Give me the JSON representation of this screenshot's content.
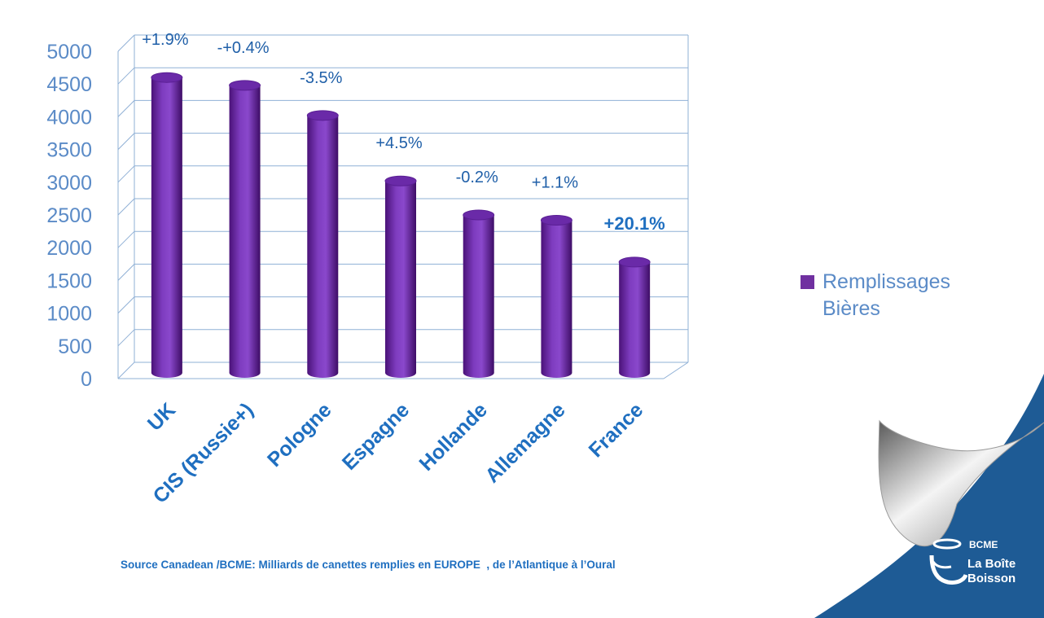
{
  "chart_data": {
    "type": "bar",
    "categories": [
      "UK",
      "CIS (Russie+)",
      "Pologne",
      "Espagne",
      "Hollande",
      "Allemagne",
      "France"
    ],
    "series": [
      {
        "name": "Remplissages Bières",
        "values": [
          4500,
          4380,
          3920,
          2920,
          2400,
          2320,
          1680
        ]
      }
    ],
    "data_labels": [
      "+1.9%",
      "-+0.4%",
      "-3.5%",
      "+4.5%",
      "-0.2%",
      "+1.1%",
      "+20.1%"
    ],
    "ylim": [
      0,
      5000
    ],
    "yticks": [
      "0",
      "500",
      "1000",
      "1500",
      "2000",
      "2500",
      "3000",
      "3500",
      "4000",
      "4500",
      "5000"
    ],
    "grid": true,
    "legend_position": "right",
    "bar_color": "#7030a0"
  },
  "legend": {
    "line1": "Remplissages",
    "line2": "Bières"
  },
  "source_text": "Source Canadean /BCME: Milliards de canettes remplies en EUROPE  , de l’Atlantique à l’Oural",
  "logo": {
    "brand": "BCME",
    "name_line1": "La Boîte",
    "name_line2": "Boisson"
  },
  "colors": {
    "corner_blue": "#1e5b95",
    "axis_text": "#5b8bc7",
    "category_text": "#1f6fc0"
  }
}
